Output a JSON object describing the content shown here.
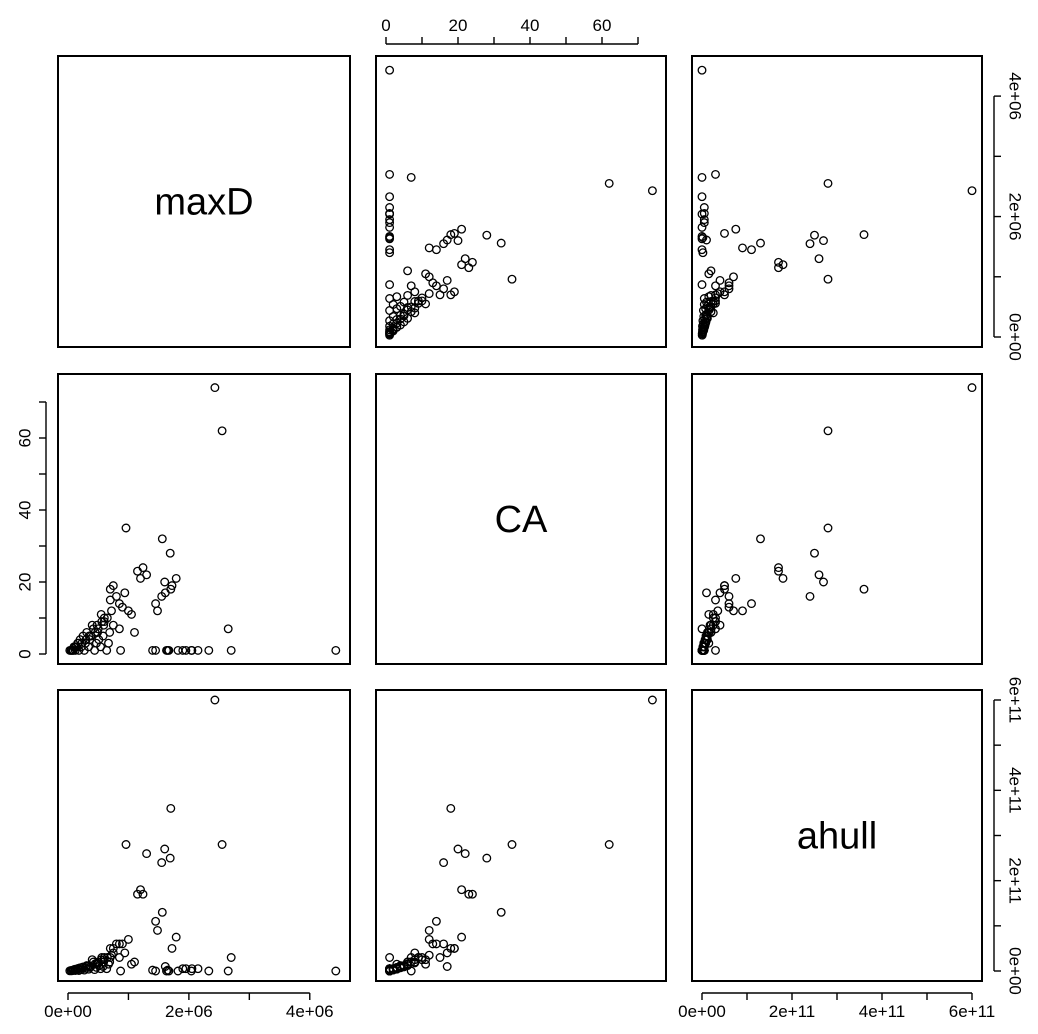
{
  "chart_data": {
    "type": "scatter",
    "variables": [
      "maxD",
      "CA",
      "ahull"
    ],
    "ranges": {
      "maxD": [
        0,
        4500000
      ],
      "CA": [
        0,
        75
      ],
      "ahull": [
        0,
        600000000000
      ]
    },
    "ticks": {
      "maxD": [
        0,
        1000000,
        2000000,
        3000000,
        4000000
      ],
      "CA": [
        0,
        10,
        20,
        30,
        40,
        50,
        60,
        70
      ],
      "ahull": [
        0,
        100000000000,
        200000000000,
        300000000000,
        400000000000,
        500000000000,
        600000000000
      ]
    },
    "tick_labels": {
      "maxD": [
        "0e+00",
        "",
        "2e+06",
        "",
        "4e+06"
      ],
      "CA": [
        "0",
        "",
        "20",
        "",
        "40",
        "",
        "60",
        ""
      ],
      "ahull": [
        "0e+00",
        "",
        "2e+11",
        "",
        "4e+11",
        "",
        "6e+11"
      ]
    },
    "points": {
      "maxD": [
        4430000,
        2700000,
        2550000,
        2430000,
        2650000,
        2330000,
        2040000,
        1820000,
        1790000,
        1720000,
        1690000,
        1610000,
        1670000,
        1630000,
        1560000,
        1480000,
        1450000,
        1300000,
        1240000,
        1200000,
        1100000,
        1050000,
        960000,
        940000,
        870000,
        850000,
        800000,
        750000,
        720000,
        700000,
        690000,
        670000,
        640000,
        600000,
        590000,
        580000,
        560000,
        540000,
        510000,
        490000,
        470000,
        440000,
        420000,
        400000,
        380000,
        360000,
        340000,
        310000,
        290000,
        270000,
        250000,
        220000,
        200000,
        180000,
        160000,
        140000,
        120000,
        100000,
        80000,
        60000,
        1700000,
        1550000,
        1450000,
        1600000,
        1950000,
        2050000,
        2150000,
        1900000,
        1650000,
        1400000,
        1150000,
        1000000,
        900000,
        850000,
        750000,
        700000,
        650000,
        600000,
        550000,
        500000,
        480000,
        450000,
        350000,
        300000,
        230000,
        170000,
        120000,
        90000,
        50000,
        30000
      ],
      "CA": [
        1,
        1,
        62,
        74,
        7,
        1,
        1,
        1,
        21,
        19,
        28,
        17,
        1,
        1,
        32,
        12,
        1,
        22,
        24,
        21,
        6,
        11,
        35,
        17,
        1,
        7,
        16,
        19,
        12,
        15,
        6,
        3,
        1,
        10,
        8,
        5,
        9,
        2,
        4,
        6,
        3,
        1,
        7,
        8,
        5,
        4,
        2,
        6,
        3,
        1,
        5,
        2,
        4,
        1,
        3,
        2,
        1,
        2,
        1,
        1,
        18,
        16,
        14,
        20,
        1,
        1,
        1,
        1,
        1,
        1,
        23,
        12,
        13,
        14,
        8,
        18,
        10,
        9,
        11,
        7,
        8,
        6,
        5,
        4,
        3,
        3,
        2,
        1,
        1,
        1
      ],
      "ahull": [
        0,
        30000000000,
        280000000000,
        600000000000,
        0,
        0,
        0,
        0,
        75000000000,
        50000000000,
        250000000000,
        10000000000,
        0,
        0,
        130000000000,
        90000000000,
        0,
        260000000000,
        170000000000,
        180000000000,
        20000000000,
        15000000000,
        280000000000,
        40000000000,
        0,
        30000000000,
        60000000000,
        50000000000,
        35000000000,
        30000000000,
        20000000000,
        15000000000,
        5000000000,
        25000000000,
        20000000000,
        10000000000,
        30000000000,
        5000000000,
        12000000000,
        15000000000,
        8000000000,
        3000000000,
        20000000000,
        25000000000,
        10000000000,
        8000000000,
        4000000000,
        12000000000,
        6000000000,
        2000000000,
        9000000000,
        3000000000,
        7000000000,
        1000000000,
        4000000000,
        2000000000,
        1000000000,
        3000000000,
        1000000000,
        500000000,
        360000000000,
        240000000000,
        110000000000,
        270000000000,
        5000000000,
        5000000000,
        5000000000,
        5000000000,
        2000000000,
        2000000000,
        170000000000,
        70000000000,
        60000000000,
        60000000000,
        40000000000,
        50000000000,
        30000000000,
        30000000000,
        25000000000,
        20000000000,
        18000000000,
        16000000000,
        12000000000,
        10000000000,
        8000000000,
        6000000000,
        4000000000,
        2000000000,
        1000000000,
        500000000
      ]
    }
  }
}
